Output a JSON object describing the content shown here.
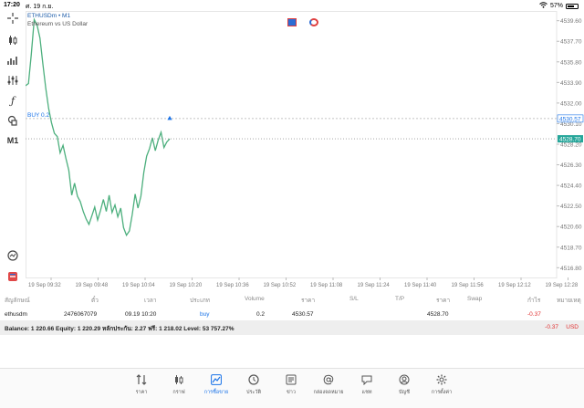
{
  "status": {
    "time": "17:20",
    "date": "ศ. 19 ก.ย.",
    "battery": "57%",
    "battery_level": 0.57
  },
  "chart": {
    "symbol": "ETHUSDm • M1",
    "description": "Ethereum vs US Dollar",
    "timeframe_label": "M1",
    "order_line_label": "BUY 0.2",
    "order_price_tag": "4530.57",
    "current_price_tag": "4528.70",
    "accent": "#26a69a",
    "line_color": "#4caf7d"
  },
  "chart_data": {
    "type": "line",
    "y_ticks": [
      "4539.60",
      "4537.70",
      "4535.80",
      "4533.90",
      "4532.00",
      "4530.10",
      "4528.20",
      "4526.30",
      "4524.40",
      "4522.50",
      "4520.60",
      "4518.70",
      "4516.80"
    ],
    "x_ticks": [
      "19 Sep 09:32",
      "19 Sep 09:48",
      "19 Sep 10:04",
      "19 Sep 10:20",
      "19 Sep 10:36",
      "19 Sep 10:52",
      "19 Sep 11:08",
      "19 Sep 11:24",
      "19 Sep 11:40",
      "19 Sep 11:56",
      "19 Sep 12:12",
      "19 Sep 12:28"
    ],
    "ylim": [
      4515.9,
      4540.5
    ],
    "values": [
      4533.6,
      4533.8,
      4536.5,
      4539.7,
      4539.2,
      4538.0,
      4535.6,
      4533.4,
      4531.5,
      4530.2,
      4529.2,
      4528.9,
      4527.4,
      4528.1,
      4526.9,
      4525.8,
      4523.5,
      4524.6,
      4523.4,
      4522.9,
      4522.0,
      4521.3,
      4520.8,
      4521.6,
      4522.4,
      4521.2,
      4522.1,
      4523.1,
      4522.0,
      4523.5,
      4521.9,
      4522.6,
      4521.5,
      4522.3,
      4520.5,
      4519.8,
      4520.2,
      4521.7,
      4523.6,
      4522.3,
      4523.4,
      4525.6,
      4527.1,
      4527.8,
      4528.8,
      4527.6,
      4528.6,
      4529.3,
      4527.9,
      4528.4,
      4528.7
    ]
  },
  "positions": {
    "headers": {
      "symbol": "สัญลักษณ์",
      "ticket": "ตั๋ว",
      "time": "เวลา",
      "type": "ประเภท",
      "volume": "Volume",
      "price": "ราคา",
      "sl": "S/L",
      "tp": "T/P",
      "cur_price": "ราคา",
      "swap": "Swap",
      "profit": "กำไร",
      "comment": "หมายเหตุ"
    },
    "row": {
      "symbol": "ethusdm",
      "ticket": "2476067079",
      "time": "09.19 10:20",
      "type": "buy",
      "volume": "0.2",
      "price": "4530.57",
      "cur_price": "4528.70",
      "profit": "-0.37"
    }
  },
  "balance": {
    "text": "Balance: 1 220.66 Equity: 1 220.29 หลักประกัน: 2.27 ฟรี: 1 218.02 Level: 53 757.27%",
    "pl": "-0.37",
    "currency": "USD"
  },
  "nav": [
    {
      "label": "ราคา",
      "icon": "quotes-icon"
    },
    {
      "label": "กราฟ",
      "icon": "chart-icon"
    },
    {
      "label": "การซื้อขาย",
      "icon": "trade-icon"
    },
    {
      "label": "ประวัติ",
      "icon": "history-icon"
    },
    {
      "label": "ข่าว",
      "icon": "news-icon"
    },
    {
      "label": "กล่องจดหมาย",
      "icon": "mailbox-icon"
    },
    {
      "label": "แชท",
      "icon": "chat-icon"
    },
    {
      "label": "บัญชี",
      "icon": "account-icon"
    },
    {
      "label": "การตั้งค่า",
      "icon": "settings-icon"
    }
  ]
}
